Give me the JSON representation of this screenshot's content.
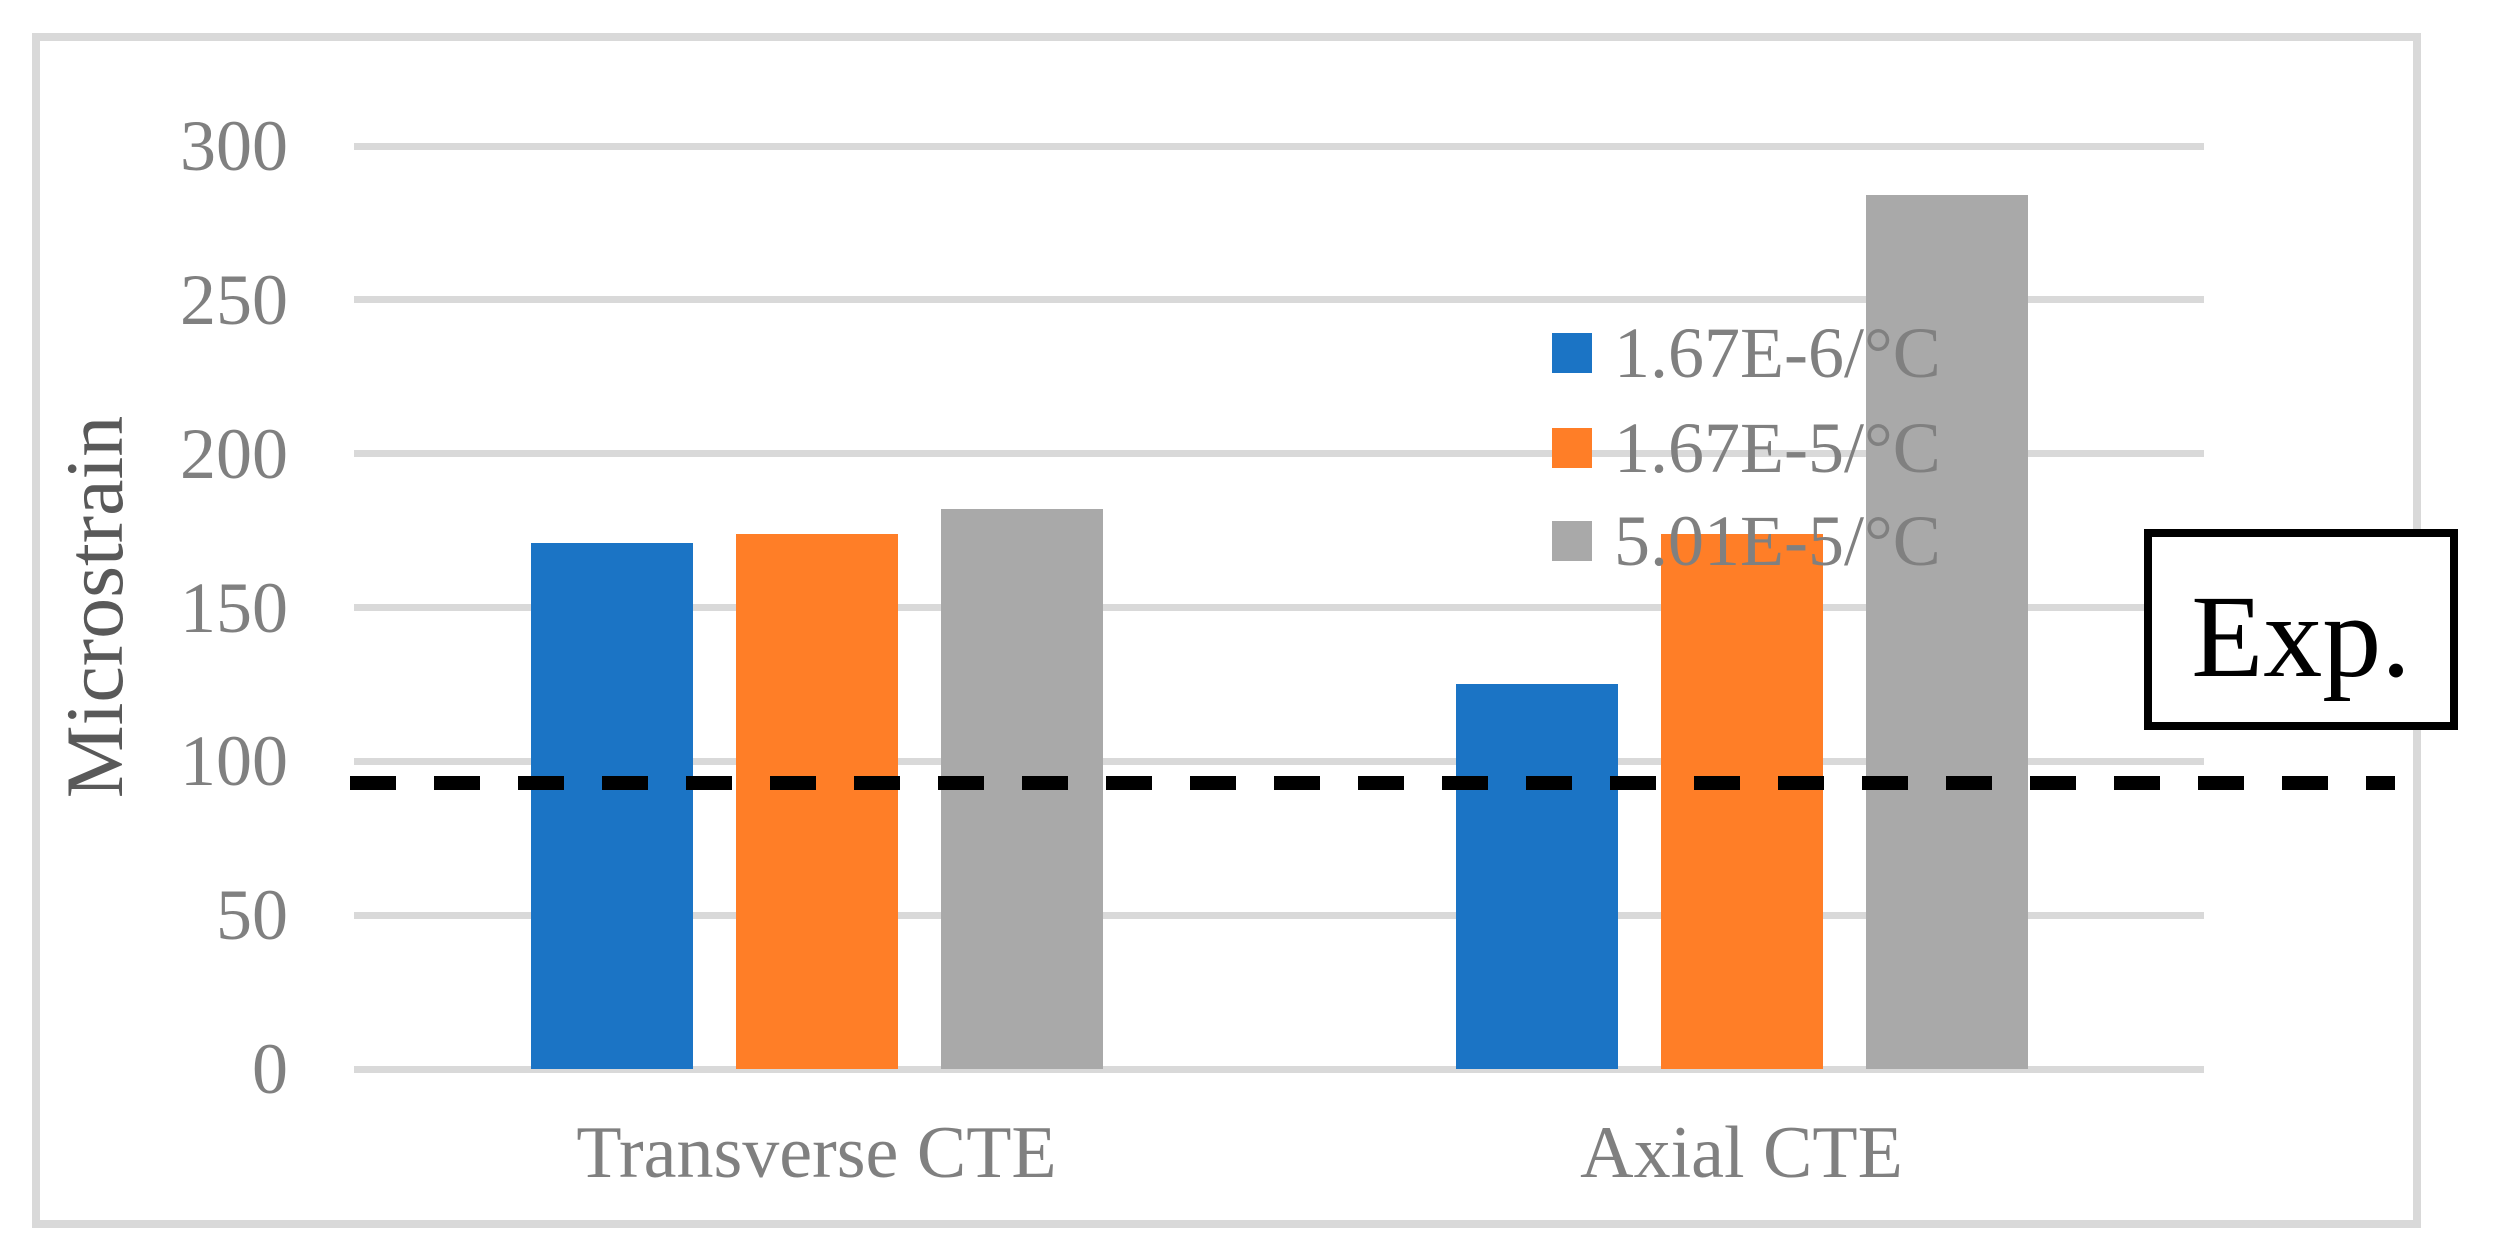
{
  "chart_data": {
    "type": "bar",
    "title": "",
    "ylabel": "Microstrain",
    "xlabel": "",
    "categories": [
      "Transverse CTE",
      "Axial CTE"
    ],
    "series": [
      {
        "name": "1.67E-6/°C",
        "color": "#1B74C5",
        "values": [
          171,
          125
        ]
      },
      {
        "name": "1.67E-5/°C",
        "color": "#FF7E27",
        "values": [
          174,
          174
        ]
      },
      {
        "name": "5.01E-5/°C",
        "color": "#A9A9A9",
        "values": [
          182,
          284
        ]
      }
    ],
    "ylim": [
      0,
      300
    ],
    "yticks": [
      300,
      250,
      200,
      150,
      100,
      50,
      0
    ],
    "grid": true,
    "legend_position": "upper center-left inside plot",
    "reference_line": {
      "label": "Exp.",
      "value": 93,
      "style": "dashed",
      "color": "#000000"
    }
  },
  "styles": {
    "gridline_color": "#D9D9D9",
    "outer_border_color": "#D9D9D9",
    "tick_label_color": "#808080",
    "category_label_color": "#808080",
    "axis_title_color": "#595959",
    "annotation_border_color": "#000000"
  }
}
